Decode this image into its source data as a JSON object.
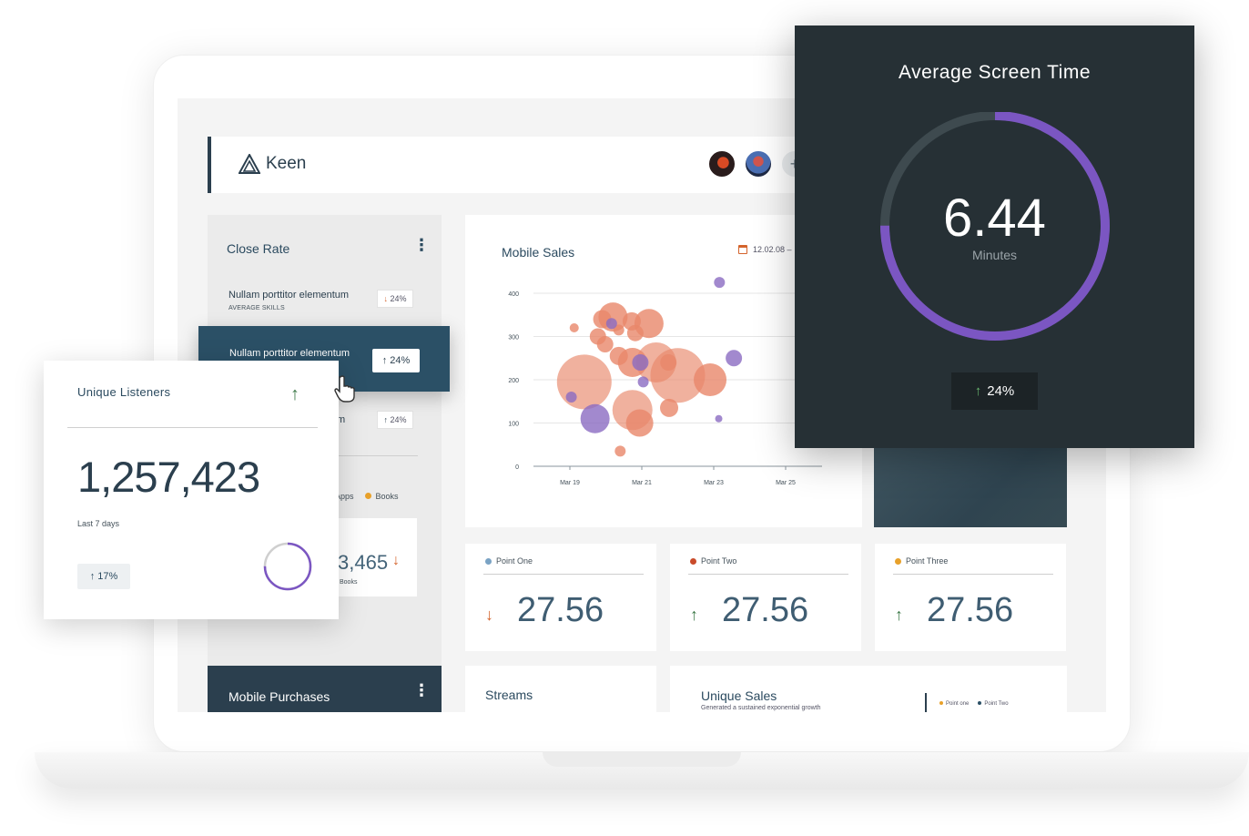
{
  "header": {
    "brand": "Keen",
    "avatars": [
      "user-1",
      "user-2"
    ],
    "add_label": "+"
  },
  "close_rate": {
    "title": "Close Rate",
    "items": [
      {
        "title": "Nullam porttitor elementum",
        "subtitle": "AVERAGE SKILLS",
        "badge": "24%",
        "direction": "down"
      },
      {
        "title": "Nullam porttitor elementum",
        "badge": "24%",
        "direction": "up",
        "highlighted": true
      },
      {
        "title_fragment": "m",
        "badge": "24%",
        "direction": "up"
      }
    ],
    "legend": [
      "Apps",
      "Books"
    ],
    "small_card": {
      "value": "3,465",
      "label": "Books",
      "direction": "down"
    }
  },
  "mobile_purchases": {
    "title": "Mobile Purchases"
  },
  "mobile_sales": {
    "title": "Mobile Sales",
    "date": "12.02.08 –"
  },
  "chart_data": {
    "type": "scatter",
    "title": "Mobile Sales",
    "x_ticks": [
      "Mar 19",
      "Mar 21",
      "Mar 23",
      "Mar 25"
    ],
    "y_ticks": [
      0,
      100,
      200,
      300,
      400
    ],
    "ylim": [
      0,
      400
    ],
    "series": [
      {
        "color": "#e8876a",
        "points": [
          {
            "x": 0.06,
            "y": 320,
            "r": 5
          },
          {
            "x": 0.39,
            "y": 300,
            "r": 9
          },
          {
            "x": 0.45,
            "y": 340,
            "r": 10
          },
          {
            "x": 0.49,
            "y": 282,
            "r": 9
          },
          {
            "x": 0.6,
            "y": 345,
            "r": 16
          },
          {
            "x": 0.68,
            "y": 315,
            "r": 6
          },
          {
            "x": 0.86,
            "y": 335,
            "r": 10
          },
          {
            "x": 0.91,
            "y": 308,
            "r": 9
          },
          {
            "x": 1.1,
            "y": 330,
            "r": 16
          },
          {
            "x": 1.2,
            "y": 240,
            "r": 22
          },
          {
            "x": 0.2,
            "y": 195,
            "r": 30
          },
          {
            "x": 0.87,
            "y": 240,
            "r": 16
          },
          {
            "x": 1.5,
            "y": 210,
            "r": 30
          },
          {
            "x": 1.95,
            "y": 200,
            "r": 18
          },
          {
            "x": 0.68,
            "y": 255,
            "r": 10
          },
          {
            "x": 1.37,
            "y": 240,
            "r": 9
          },
          {
            "x": 0.87,
            "y": 130,
            "r": 22
          },
          {
            "x": 0.97,
            "y": 100,
            "r": 15
          },
          {
            "x": 1.38,
            "y": 135,
            "r": 10
          },
          {
            "x": 0.7,
            "y": 35,
            "r": 6
          }
        ]
      },
      {
        "color": "#8b6cc2",
        "points": [
          {
            "x": 0.02,
            "y": 160,
            "r": 6
          },
          {
            "x": 0.58,
            "y": 330,
            "r": 6
          },
          {
            "x": 0.98,
            "y": 240,
            "r": 9
          },
          {
            "x": 1.02,
            "y": 195,
            "r": 6
          },
          {
            "x": 2.08,
            "y": 425,
            "r": 6
          },
          {
            "x": 2.28,
            "y": 250,
            "r": 9
          },
          {
            "x": 0.35,
            "y": 110,
            "r": 16
          },
          {
            "x": 2.07,
            "y": 110,
            "r": 4
          }
        ]
      }
    ]
  },
  "points": [
    {
      "label": "Point One",
      "dot_color": "#7aa3c4",
      "value": "27.56",
      "direction": "down"
    },
    {
      "label": "Point Two",
      "dot_color": "#c94b2a",
      "value": "27.56",
      "direction": "up"
    },
    {
      "label": "Point Three",
      "dot_color": "#e8a12a",
      "value": "27.56",
      "direction": "up"
    }
  ],
  "streams": {
    "title": "Streams"
  },
  "unique_sales": {
    "title": "Unique Sales",
    "subtitle": "Generated a sustained exponential growth",
    "legend": [
      "Point one",
      "Point Two"
    ]
  },
  "unique_listeners": {
    "title": "Unique Listeners",
    "value": "1,257,423",
    "period": "Last 7 days",
    "change": "17%",
    "ring_fraction": 0.75
  },
  "average_screen_time": {
    "title": "Average Screen Time",
    "value": "6.44",
    "unit": "Minutes",
    "change": "24%",
    "ring_fraction": 0.75
  },
  "colors": {
    "navy": "#2b3f4e",
    "accent_orange": "#d4632c",
    "accent_purple": "#7b56c2",
    "green": "#3e7a4a"
  }
}
